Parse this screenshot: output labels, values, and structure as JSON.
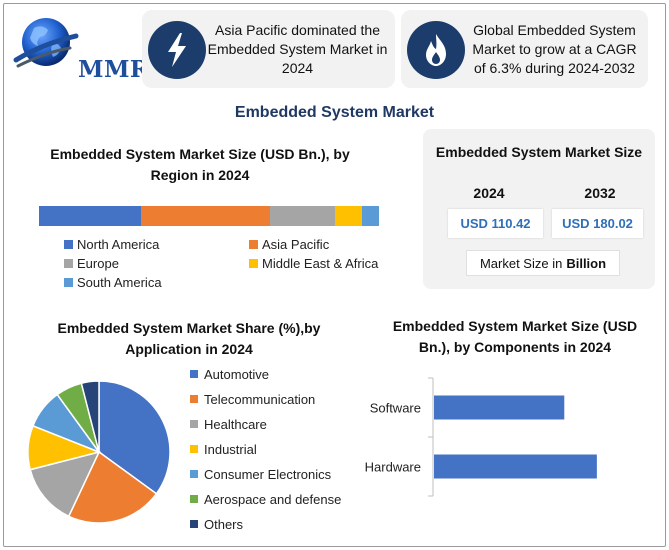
{
  "brand": {
    "logo_text": "MMR"
  },
  "info_cards": [
    {
      "icon": "lightning-icon",
      "text": "Asia Pacific dominated the Embedded System Market in 2024"
    },
    {
      "icon": "flame-icon",
      "text": "Global Embedded System Market to grow at a CAGR of 6.3% during 2024-2032"
    }
  ],
  "main_title": "Embedded System Market",
  "market_size": {
    "title": "Embedded System Market Size",
    "year_a": "2024",
    "year_b": "2032",
    "value_a": "USD 110.42",
    "value_b": "USD 180.02",
    "unit_prefix": "Market Size in",
    "unit_bold": "Billion"
  },
  "colors": {
    "north_america": "#4472c4",
    "asia_pacific": "#ed7d31",
    "europe": "#a5a5a5",
    "middle_east_africa": "#ffc000",
    "south_america": "#5b9bd5",
    "aerospace": "#70ad47",
    "others": "#264478",
    "card_icon_bg": "#1c3d6c",
    "title_navy": "#1f3864"
  },
  "chart_data": [
    {
      "type": "bar",
      "orientation": "stacked-horizontal",
      "title": "Embedded System Market Size (USD Bn.), by Region in 2024",
      "categories": [
        "North America",
        "Asia Pacific",
        "Europe",
        "Middle East & Africa",
        "South America"
      ],
      "values": [
        30,
        38,
        19,
        8,
        5
      ],
      "colors": [
        "#4472c4",
        "#ed7d31",
        "#a5a5a5",
        "#ffc000",
        "#5b9bd5"
      ],
      "legend_position": "bottom"
    },
    {
      "type": "pie",
      "title": "Embedded System Market Share (%),by Application in 2024",
      "categories": [
        "Automotive",
        "Telecommunication",
        "Healthcare",
        "Industrial",
        "Consumer Electronics",
        "Aerospace and defense",
        "Others"
      ],
      "values": [
        35,
        22,
        14,
        10,
        9,
        6,
        4
      ],
      "colors": [
        "#4472c4",
        "#ed7d31",
        "#a5a5a5",
        "#ffc000",
        "#5b9bd5",
        "#70ad47",
        "#264478"
      ],
      "legend_position": "right"
    },
    {
      "type": "bar",
      "orientation": "horizontal",
      "title": "Embedded System Market Size (USD Bn.), by Components in 2024",
      "categories": [
        "Software",
        "Hardware"
      ],
      "values": [
        48,
        60
      ],
      "xlim": [
        0,
        70
      ],
      "color": "#4472c4"
    }
  ]
}
